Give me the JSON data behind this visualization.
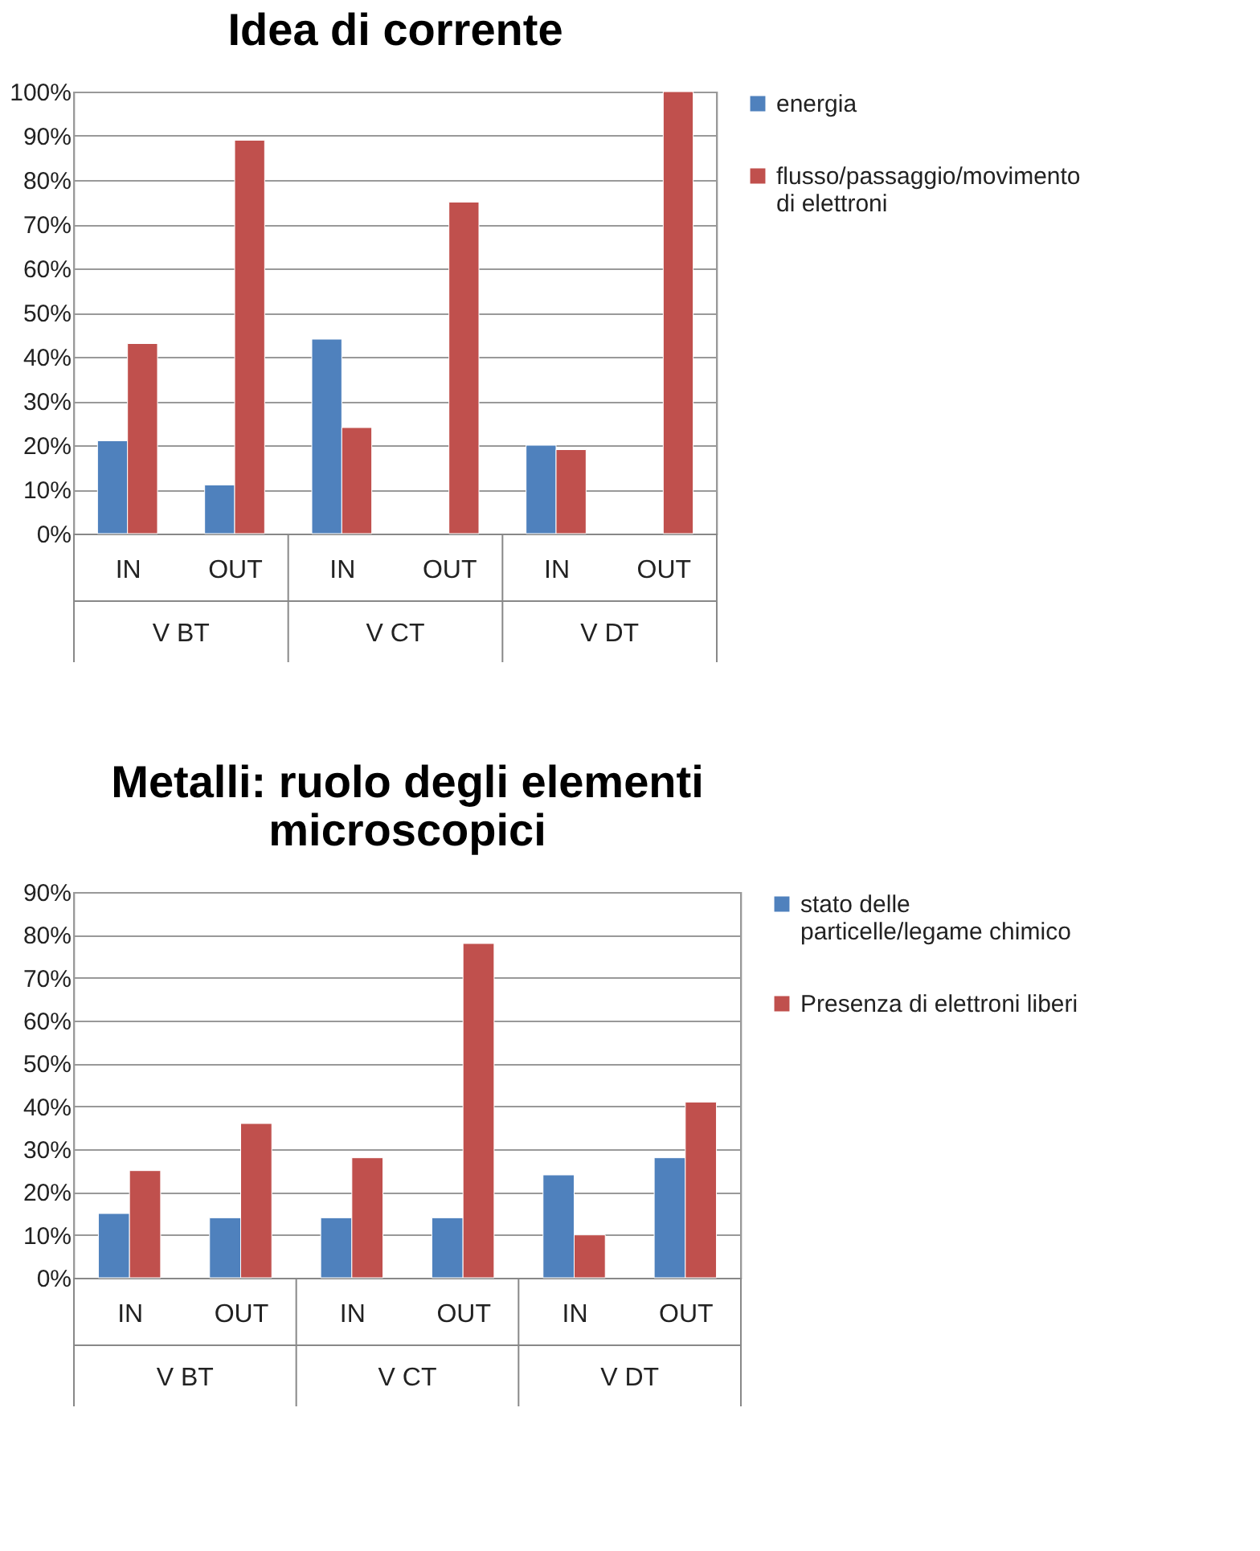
{
  "chart_data": [
    {
      "type": "bar",
      "title": "Idea di corrente",
      "categories": [
        "IN",
        "OUT",
        "IN",
        "OUT",
        "IN",
        "OUT"
      ],
      "annotations": [
        "V BT",
        "V CT",
        "V DT"
      ],
      "series": [
        {
          "name": "energia",
          "color": "#4f81bd",
          "values": [
            21,
            11,
            44,
            null,
            20,
            null
          ]
        },
        {
          "name": "flusso/passaggio/movimento di elettroni",
          "color": "#c0504d",
          "values": [
            43,
            89,
            24,
            75,
            19,
            100
          ]
        }
      ],
      "ylim": [
        0,
        100
      ],
      "yticks": [
        {
          "value": 0,
          "label": "0%"
        },
        {
          "value": 10,
          "label": "10%"
        },
        {
          "value": 20,
          "label": "20%"
        },
        {
          "value": 30,
          "label": "30%"
        },
        {
          "value": 40,
          "label": "40%"
        },
        {
          "value": 50,
          "label": "50%"
        },
        {
          "value": 60,
          "label": "60%"
        },
        {
          "value": 70,
          "label": "70%"
        },
        {
          "value": 80,
          "label": "80%"
        },
        {
          "value": 90,
          "label": "90%"
        },
        {
          "value": 100,
          "label": "100%"
        }
      ],
      "grid": "y",
      "legend": "right"
    },
    {
      "type": "bar",
      "title": "Metalli: ruolo degli elementi microscopici",
      "categories": [
        "IN",
        "OUT",
        "IN",
        "OUT",
        "IN",
        "OUT"
      ],
      "annotations": [
        "V BT",
        "V CT",
        "V DT"
      ],
      "series": [
        {
          "name": "stato delle particelle/legame chimico",
          "color": "#4f81bd",
          "values": [
            15,
            14,
            14,
            14,
            24,
            28
          ]
        },
        {
          "name": "Presenza di elettroni liberi",
          "color": "#c0504d",
          "values": [
            25,
            36,
            28,
            78,
            10,
            41
          ]
        }
      ],
      "ylim": [
        0,
        90
      ],
      "yticks": [
        {
          "value": 0,
          "label": "0%"
        },
        {
          "value": 10,
          "label": "10%"
        },
        {
          "value": 20,
          "label": "20%"
        },
        {
          "value": 30,
          "label": "30%"
        },
        {
          "value": 40,
          "label": "40%"
        },
        {
          "value": 50,
          "label": "50%"
        },
        {
          "value": 60,
          "label": "60%"
        },
        {
          "value": 70,
          "label": "70%"
        },
        {
          "value": 80,
          "label": "80%"
        },
        {
          "value": 90,
          "label": "90%"
        }
      ],
      "grid": "y",
      "legend": "right"
    }
  ]
}
